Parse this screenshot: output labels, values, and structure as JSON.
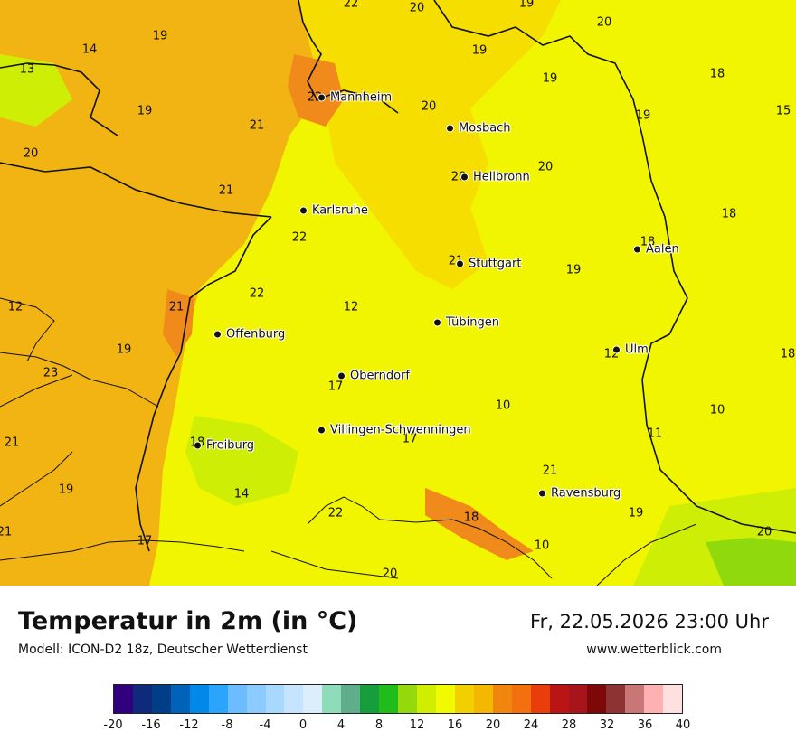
{
  "header": {
    "title": "Temperatur in 2m (in °C)",
    "model": "Modell: ICON-D2 18z, Deutscher Wetterdienst",
    "datetime": "Fr, 22.05.2026 23:00 Uhr",
    "website": "www.wetterblick.com"
  },
  "legend": {
    "ticks": [
      "-20",
      "-16",
      "-12",
      "-8",
      "-4",
      "0",
      "4",
      "8",
      "12",
      "16",
      "20",
      "24",
      "28",
      "32",
      "36",
      "40"
    ],
    "colors": [
      "#30007f",
      "#0f2a7a",
      "#003f87",
      "#0062b8",
      "#0089e8",
      "#2aa5fb",
      "#6dbcff",
      "#8ccbff",
      "#a9d8ff",
      "#c6e4ff",
      "#dcedfb",
      "#8fdcbb",
      "#5fad8a",
      "#169e3c",
      "#20bd1a",
      "#95d90c",
      "#d0ef00",
      "#f2fa00",
      "#f2d000",
      "#f4b800",
      "#f1860e",
      "#f3700f",
      "#e93d0c",
      "#bb1414",
      "#a71419",
      "#7e0707",
      "#8e3333",
      "#c97776",
      "#ffb1b1",
      "#ffe0e0"
    ]
  },
  "map_colors": {
    "yellow": "#f2f500",
    "yellow_orange": "#f5de00",
    "orange": "#f2b413",
    "dark_orange": "#f08a1a",
    "lime": "#cfee05",
    "green": "#8fd90c"
  },
  "cities": [
    {
      "name": "Mannheim"
    },
    {
      "name": "Mosbach"
    },
    {
      "name": "Heilbronn"
    },
    {
      "name": "Karlsruhe"
    },
    {
      "name": "Aalen"
    },
    {
      "name": "Stuttgart"
    },
    {
      "name": "Tübingen"
    },
    {
      "name": "Offenburg"
    },
    {
      "name": "Ulm"
    },
    {
      "name": "Oberndorf"
    },
    {
      "name": "Villingen-Schwenningen"
    },
    {
      "name": "Freiburg"
    },
    {
      "name": "Ravensburg"
    }
  ],
  "values": [
    "22",
    "20",
    "19",
    "20",
    "14",
    "19",
    "19",
    "13",
    "19",
    "18",
    "22",
    "20",
    "19",
    "15",
    "19",
    "21",
    "20",
    "20",
    "20",
    "21",
    "18",
    "22",
    "21",
    "18",
    "19",
    "12",
    "22",
    "12",
    "23",
    "21",
    "19",
    "12",
    "18",
    "17",
    "10",
    "10",
    "21",
    "17",
    "18",
    "11",
    "14",
    "21",
    "19",
    "22",
    "18",
    "19",
    "21",
    "17",
    "20",
    "10",
    "20"
  ]
}
